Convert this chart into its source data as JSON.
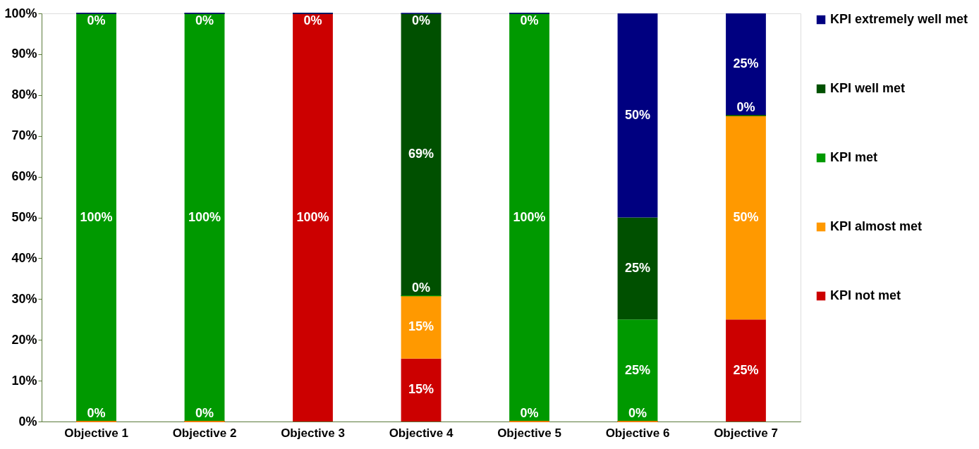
{
  "chart_data": {
    "type": "bar",
    "stacked": true,
    "categories": [
      "Objective 1",
      "Objective 2",
      "Objective 3",
      "Objective 4",
      "Objective 5",
      "Objective 6",
      "Objective 7"
    ],
    "series": [
      {
        "name": "KPI not met",
        "color": "#cc0000",
        "values": [
          0,
          0,
          100,
          15.4,
          0,
          0,
          25
        ],
        "value_labels": [
          "0%",
          "0%",
          "100%",
          "15%",
          "0%",
          "0%",
          "25%"
        ]
      },
      {
        "name": "KPI almost met",
        "color": "#ff9900",
        "values": [
          0,
          0,
          0,
          15.4,
          0,
          0,
          50
        ],
        "value_labels": [
          null,
          null,
          null,
          "15%",
          null,
          null,
          "50%"
        ]
      },
      {
        "name": "KPI met",
        "color": "#009900",
        "values": [
          100,
          100,
          0,
          0,
          100,
          25,
          0
        ],
        "value_labels": [
          "100%",
          "100%",
          null,
          "0%",
          "100%",
          "25%",
          "0%"
        ]
      },
      {
        "name": "KPI well met",
        "color": "#005000",
        "values": [
          0,
          0,
          0,
          69.2,
          0,
          25,
          0
        ],
        "value_labels": [
          "0%",
          "0%",
          "0%",
          "69%",
          "0%",
          "25%",
          null
        ]
      },
      {
        "name": "KPI extremely well met",
        "color": "#000080",
        "values": [
          0,
          0,
          0,
          0,
          0,
          50,
          25
        ],
        "value_labels": [
          null,
          null,
          null,
          "0%",
          null,
          "50%",
          "25%"
        ]
      }
    ],
    "ylim": [
      0,
      100
    ],
    "yticks": [
      {
        "value": 0,
        "label": "0%"
      },
      {
        "value": 10,
        "label": "10%"
      },
      {
        "value": 20,
        "label": "20%"
      },
      {
        "value": 30,
        "label": "30%"
      },
      {
        "value": 40,
        "label": "40%"
      },
      {
        "value": 50,
        "label": "50%"
      },
      {
        "value": 60,
        "label": "60%"
      },
      {
        "value": 70,
        "label": "70%"
      },
      {
        "value": 80,
        "label": "80%"
      },
      {
        "value": 90,
        "label": "90%"
      },
      {
        "value": 100,
        "label": "100%"
      }
    ],
    "grid": false,
    "legend": "right"
  }
}
